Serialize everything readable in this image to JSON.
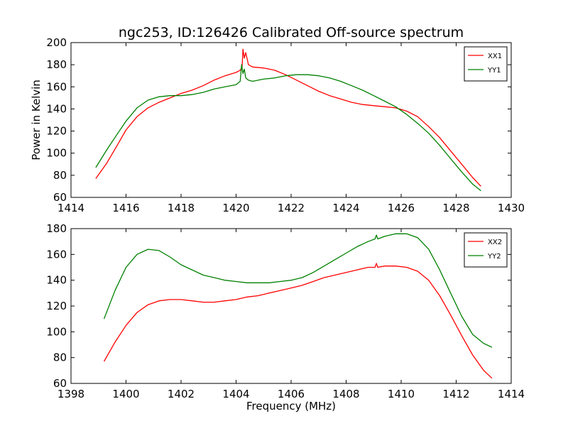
{
  "figure_title": "ngc253, ID:126426 Calibrated Off-source spectrum",
  "chart_data": [
    {
      "type": "line",
      "title": "ngc253, ID:126426 Calibrated Off-source spectrum",
      "xlabel": "",
      "ylabel": "Power in Kelvin",
      "xlim": [
        1414,
        1430
      ],
      "ylim": [
        60,
        200
      ],
      "xticks": [
        1414,
        1416,
        1418,
        1420,
        1422,
        1424,
        1426,
        1428,
        1430
      ],
      "yticks": [
        60,
        80,
        100,
        120,
        140,
        160,
        180,
        200
      ],
      "grid": false,
      "legend_position": "top-right",
      "series": [
        {
          "name": "XX1",
          "color": "#ff0000",
          "x": [
            1414.9,
            1415.3,
            1415.7,
            1416.0,
            1416.4,
            1416.8,
            1417.2,
            1417.6,
            1418.0,
            1418.4,
            1418.8,
            1419.2,
            1419.6,
            1420.0,
            1420.15,
            1420.22,
            1420.25,
            1420.3,
            1420.35,
            1420.45,
            1420.6,
            1421.0,
            1421.4,
            1421.8,
            1422.2,
            1422.6,
            1423.0,
            1423.4,
            1423.8,
            1424.2,
            1424.6,
            1425.0,
            1425.4,
            1425.8,
            1426.2,
            1426.6,
            1427.0,
            1427.4,
            1427.8,
            1428.2,
            1428.6,
            1428.9
          ],
          "y": [
            77,
            91,
            108,
            121,
            133,
            141,
            146,
            150,
            154,
            157,
            161,
            166,
            170,
            173,
            175,
            178,
            194,
            186,
            191,
            180,
            178,
            177,
            175,
            171,
            166,
            161,
            156,
            152,
            149,
            146,
            144,
            143,
            142,
            141,
            138,
            133,
            124,
            114,
            102,
            90,
            78,
            70
          ]
        },
        {
          "name": "YY1",
          "color": "#008000",
          "x": [
            1414.9,
            1415.3,
            1415.7,
            1416.0,
            1416.4,
            1416.8,
            1417.2,
            1417.6,
            1418.0,
            1418.4,
            1418.8,
            1419.2,
            1419.6,
            1420.0,
            1420.15,
            1420.2,
            1420.25,
            1420.3,
            1420.35,
            1420.45,
            1420.6,
            1421.0,
            1421.4,
            1421.8,
            1422.2,
            1422.6,
            1423.0,
            1423.4,
            1423.8,
            1424.2,
            1424.6,
            1425.0,
            1425.4,
            1425.8,
            1426.2,
            1426.6,
            1427.0,
            1427.4,
            1427.8,
            1428.2,
            1428.6,
            1428.9
          ],
          "y": [
            87,
            103,
            118,
            129,
            141,
            148,
            151,
            152,
            152,
            153,
            155,
            158,
            160,
            162,
            165,
            180,
            172,
            176,
            168,
            166,
            165,
            167,
            168,
            170,
            171,
            171,
            170,
            168,
            165,
            161,
            157,
            152,
            147,
            142,
            135,
            127,
            118,
            107,
            95,
            83,
            72,
            66
          ]
        }
      ]
    },
    {
      "type": "line",
      "title": "",
      "xlabel": "Frequency (MHz)",
      "ylabel": "",
      "xlim": [
        1398,
        1414
      ],
      "ylim": [
        60,
        180
      ],
      "xticks": [
        1398,
        1400,
        1402,
        1404,
        1406,
        1408,
        1410,
        1412,
        1414
      ],
      "yticks": [
        60,
        80,
        100,
        120,
        140,
        160,
        180
      ],
      "grid": false,
      "legend_position": "top-right",
      "series": [
        {
          "name": "XX2",
          "color": "#ff0000",
          "x": [
            1399.2,
            1399.6,
            1400.0,
            1400.4,
            1400.8,
            1401.2,
            1401.6,
            1402.0,
            1402.4,
            1402.8,
            1403.2,
            1403.6,
            1404.0,
            1404.4,
            1404.8,
            1405.2,
            1405.6,
            1406.0,
            1406.4,
            1406.8,
            1407.2,
            1407.6,
            1408.0,
            1408.4,
            1408.8,
            1409.05,
            1409.1,
            1409.15,
            1409.4,
            1409.8,
            1410.2,
            1410.6,
            1411.0,
            1411.4,
            1411.8,
            1412.2,
            1412.6,
            1413.0,
            1413.3
          ],
          "y": [
            77,
            92,
            105,
            115,
            121,
            124,
            125,
            125,
            124,
            123,
            123,
            124,
            125,
            127,
            128,
            130,
            132,
            134,
            136,
            139,
            142,
            144,
            146,
            148,
            150,
            150,
            153,
            150,
            151,
            151,
            150,
            147,
            140,
            128,
            113,
            97,
            82,
            70,
            64
          ]
        },
        {
          "name": "YY2",
          "color": "#008000",
          "x": [
            1399.2,
            1399.6,
            1400.0,
            1400.4,
            1400.8,
            1401.2,
            1401.6,
            1402.0,
            1402.4,
            1402.8,
            1403.2,
            1403.6,
            1404.0,
            1404.4,
            1404.8,
            1405.2,
            1405.6,
            1406.0,
            1406.4,
            1406.8,
            1407.2,
            1407.6,
            1408.0,
            1408.4,
            1408.8,
            1409.05,
            1409.1,
            1409.15,
            1409.4,
            1409.8,
            1410.2,
            1410.6,
            1411.0,
            1411.4,
            1411.8,
            1412.2,
            1412.6,
            1413.0,
            1413.3
          ],
          "y": [
            110,
            132,
            150,
            160,
            164,
            163,
            158,
            152,
            148,
            144,
            142,
            140,
            139,
            138,
            138,
            138,
            139,
            140,
            142,
            146,
            151,
            156,
            161,
            166,
            170,
            172,
            175,
            172,
            174,
            176,
            176,
            173,
            164,
            148,
            130,
            112,
            98,
            91,
            88
          ]
        }
      ]
    }
  ]
}
